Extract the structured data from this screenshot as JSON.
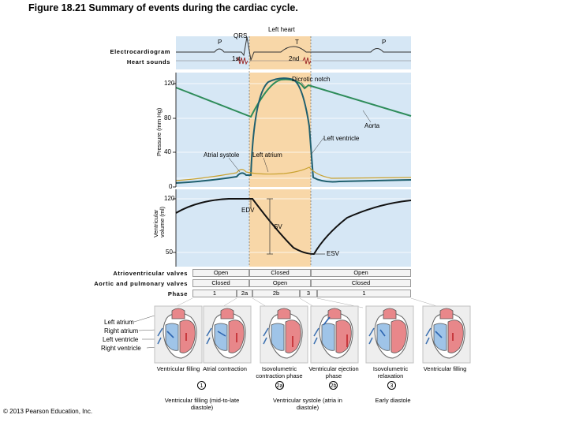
{
  "title": "Figure 18.21 Summary of events during the cardiac cycle.",
  "top_label": "Left heart",
  "ecg": {
    "p1": "P",
    "qrs": "QRS",
    "t": "T",
    "p2": "P",
    "row_label": "Electrocardiogram"
  },
  "heart_sounds": {
    "first": "1st",
    "second": "2nd",
    "row_label": "Heart sounds"
  },
  "pressure": {
    "axis_label": "Pressure (mm Hg)",
    "ticks": [
      "120",
      "80",
      "40",
      "0"
    ],
    "dicrotic_notch": "Dicrotic notch",
    "aorta": "Aorta",
    "left_ventricle": "Left ventricle",
    "atrial_systole": "Atrial systole",
    "left_atrium": "Left atrium"
  },
  "volume": {
    "axis_label": "Ventricular volume (ml)",
    "ticks": [
      "120",
      "50"
    ],
    "edv": "EDV",
    "sv": "SV",
    "esv": "ESV"
  },
  "valves": {
    "av_label": "Atrioventricular valves",
    "av": [
      "Open",
      "Closed",
      "Open"
    ],
    "sl_label": "Aortic and pulmonary valves",
    "sl": [
      "Closed",
      "Open",
      "Closed"
    ],
    "phase_label": "Phase",
    "phases": [
      "1",
      "2a",
      "2b",
      "3",
      "1"
    ]
  },
  "heart_labels": [
    "Left atrium",
    "Right atrium",
    "Left ventricle",
    "Right ventricle"
  ],
  "panels": {
    "p1": "Ventricular filling",
    "p2": "Atrial contraction",
    "p3": "Isovolumetric contraction phase",
    "p4": "Ventricular ejection phase",
    "p5": "Isovolumetric relaxation",
    "p6": "Ventricular filling"
  },
  "phase_nums": {
    "n1": "1",
    "n2a": "2a",
    "n2b": "2b",
    "n3": "3"
  },
  "groups": {
    "g1": "Ventricular filling (mid-to-late diastole)",
    "g2": "Ventricular systole (atria in diastole)",
    "g3": "Early diastole"
  },
  "copyright": "© 2013 Pearson Education, Inc."
}
